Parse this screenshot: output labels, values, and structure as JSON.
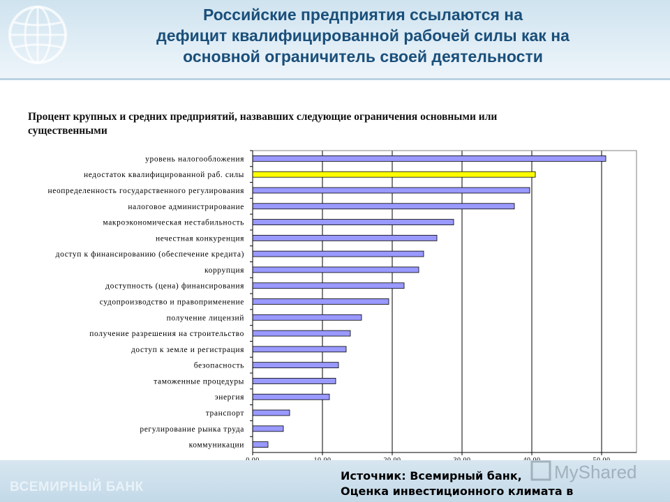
{
  "header": {
    "title_lines": [
      "Российские предприятия ссылаются на",
      "дефицит  квалифицированной рабочей силы как на",
      "основной ограничитель своей деятельности"
    ]
  },
  "subtitle_lines": [
    "Процент крупных и средних предприятий, назвавших следующие ограничения основными или",
    "существенными"
  ],
  "footer": {
    "org_name": "ВСЕМИРНЫЙ БАНК",
    "source_lines": [
      "Источник: Всемирный банк,",
      "Оценка инвестиционного климата в"
    ],
    "watermark": "MyShared"
  },
  "colors": {
    "bar": "#9999ff",
    "highlight": "#ffff00",
    "title": "#1a4f7a"
  },
  "chart_data": {
    "type": "bar",
    "orientation": "horizontal",
    "categories": [
      "уровень налогообложения",
      "недостаток квалифицированной раб. силы",
      "неопределенность государственного регулирования",
      "налоговое администрирование",
      "макроэкономическая нестабильность",
      "нечестная конкуренция",
      "доступ к финансированию (обеспечение кредита)",
      "коррупция",
      "доступность (цена) финансирования",
      "судопроизводство и правоприменение",
      "получение лицензий",
      "получение разрешения на строительство",
      "доступ к земле и регистрация",
      "безопасность",
      "таможенные процедуры",
      "энергия",
      "транспорт",
      "регулирование рынка труда",
      "коммуникации"
    ],
    "values": [
      50.6,
      40.5,
      39.7,
      37.5,
      28.8,
      26.4,
      24.5,
      23.8,
      21.7,
      19.5,
      15.6,
      14.0,
      13.4,
      12.3,
      11.9,
      11.0,
      5.3,
      4.4,
      2.2
    ],
    "highlight_index": 1,
    "xlim": [
      0,
      55
    ],
    "xticks": [
      0,
      10,
      20,
      30,
      40,
      50
    ],
    "xtick_labels": [
      "0.00",
      "10.00",
      "20.00",
      "30.00",
      "40.00",
      "50.00"
    ],
    "grid": true,
    "title": "",
    "xlabel": "",
    "ylabel": ""
  }
}
